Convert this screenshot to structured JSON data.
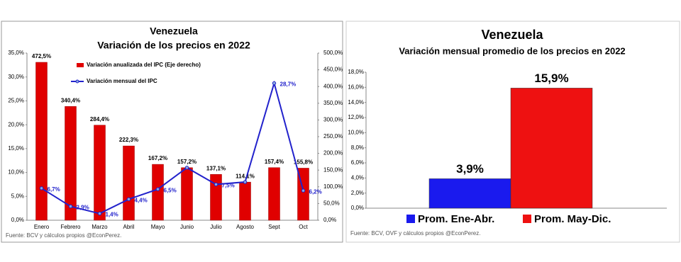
{
  "chart_data": [
    {
      "type": "combo",
      "title": "Venezuela",
      "subtitle": "Variación de los precios en 2022",
      "source": "Fuente: BCV y cálculos propios @EconPerez.",
      "categories": [
        "Enero",
        "Febrero",
        "Marzo",
        "Abril",
        "Mayo",
        "Junio",
        "Julio",
        "Agosto",
        "Sept",
        "Oct"
      ],
      "series": [
        {
          "name": "Variación anualizada del IPC (Eje derecho)",
          "kind": "bar",
          "color": "#e00000",
          "axis": "y2",
          "values": [
            472.5,
            340.4,
            284.4,
            222.3,
            167.2,
            157.2,
            137.1,
            114.1,
            157.4,
            155.8
          ],
          "value_labels": [
            "472,5%",
            "340,4%",
            "284,4%",
            "222,3%",
            "167,2%",
            "157,2%",
            "137,1%",
            "114,1%",
            "157,4%",
            "155,8%"
          ]
        },
        {
          "name": "Variación mensual del IPC",
          "kind": "line",
          "color": "#2222cc",
          "values": [
            6.7,
            2.9,
            1.4,
            4.4,
            6.5,
            11.0,
            7.5,
            8.0,
            28.7,
            6.2
          ],
          "value_labels": [
            "6,7%",
            "2,9%",
            "1,4%",
            "4,4%",
            "6,5%",
            null,
            "7,5%",
            null,
            "28,7%",
            "6,2%"
          ]
        }
      ],
      "ylim": [
        0,
        35
      ],
      "yticks": [
        {
          "value": 0,
          "label": "0,0%"
        },
        {
          "value": 5,
          "label": "5,0%"
        },
        {
          "value": 10,
          "label": "10,0%"
        },
        {
          "value": 15,
          "label": "15,0%"
        },
        {
          "value": 20,
          "label": "20,0%"
        },
        {
          "value": 25,
          "label": "25,0%"
        },
        {
          "value": 30,
          "label": "30,0%"
        },
        {
          "value": 35,
          "label": "35,0%"
        }
      ],
      "y2lim": [
        0,
        500
      ],
      "y2ticks": [
        {
          "value": 0,
          "label": "0,0%"
        },
        {
          "value": 50,
          "label": "50,0%"
        },
        {
          "value": 100,
          "label": "100,0%"
        },
        {
          "value": 150,
          "label": "150,0%"
        },
        {
          "value": 200,
          "label": "200,0%"
        },
        {
          "value": 250,
          "label": "250,0%"
        },
        {
          "value": 300,
          "label": "300,0%"
        },
        {
          "value": 350,
          "label": "350,0%"
        },
        {
          "value": 400,
          "label": "400,0%"
        },
        {
          "value": 450,
          "label": "450,0%"
        },
        {
          "value": 500,
          "label": "500,0%"
        }
      ]
    },
    {
      "type": "bar",
      "title": "Venezuela",
      "subtitle": "Variación mensual promedio de los precios en 2022",
      "source": "Fuente: BCV, OVF y cálculos propios @EconPerez.",
      "categories": [
        "Prom. Ene-Abr.",
        "Prom. May-Dic."
      ],
      "values": [
        3.9,
        15.9
      ],
      "value_labels": [
        "3,9%",
        "15,9%"
      ],
      "colors": [
        "#1a1aee",
        "#ee1111"
      ],
      "legend": "bottom",
      "ylim": [
        0,
        18
      ],
      "yticks": [
        {
          "value": 0,
          "label": "0,0%"
        },
        {
          "value": 2,
          "label": "2,0%"
        },
        {
          "value": 4,
          "label": "4,0%"
        },
        {
          "value": 6,
          "label": "6,0%"
        },
        {
          "value": 8,
          "label": "8,0%"
        },
        {
          "value": 10,
          "label": "10,0%"
        },
        {
          "value": 12,
          "label": "12,0%"
        },
        {
          "value": 14,
          "label": "14,0%"
        },
        {
          "value": 16,
          "label": "16,0%"
        },
        {
          "value": 18,
          "label": "18,0%"
        }
      ]
    }
  ]
}
